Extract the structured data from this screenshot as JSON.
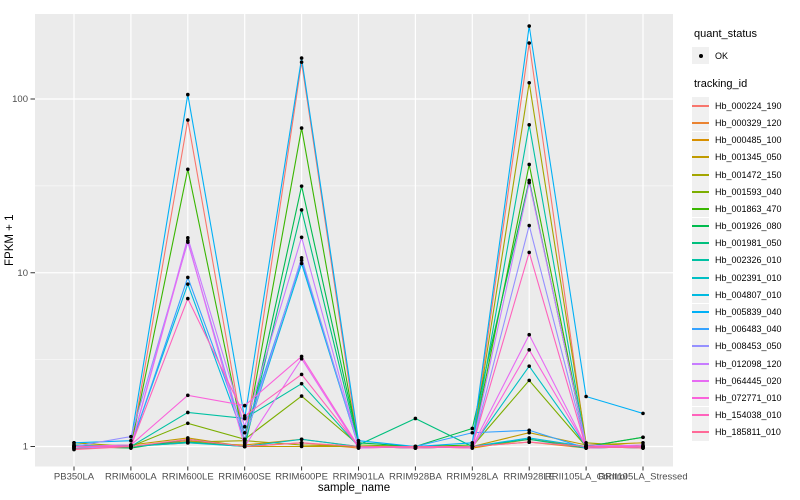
{
  "figure": {
    "background": "#FFFFFF",
    "panel_background": "#EBEBEB",
    "grid_color": "#FFFFFF",
    "tick_color": "#333333",
    "tick_label_color": "#4D4D4D",
    "axis_title_color": "#000000",
    "point_color": "#000000"
  },
  "legend": {
    "quant_status": {
      "title": "quant_status",
      "items": [
        {
          "label": "OK",
          "marker": "point-icon",
          "color": "#000000"
        }
      ]
    },
    "tracking_id": {
      "title": "tracking_id"
    }
  },
  "chart_data": {
    "type": "line",
    "title": "",
    "xlabel": "sample_name",
    "ylabel": "FPKM + 1",
    "y_scale": "log10",
    "y_ticks": [
      1,
      10,
      100
    ],
    "y_minor_ticks_log10": [
      0.5,
      1.5
    ],
    "ylim_log10": [
      -0.115,
      2.49
    ],
    "grid": true,
    "legend_position": "right",
    "point_marker": "black dot (quant_status OK) at every observation",
    "categories": [
      "PB350LA",
      "RRIM600LA",
      "RRIM600LE",
      "RRIM600SE",
      "RRIM600PE",
      "RRIM901LA",
      "RRIM928BA",
      "RRIM928LA",
      "RRIM928LE",
      "RRII105LA_Control",
      "RRII105LA_Stressed"
    ],
    "series": [
      {
        "name": "Hb_000224_190",
        "color": "#F8766D",
        "values": [
          1.0,
          0.98,
          75.7,
          1.05,
          163,
          1.0,
          0.98,
          1.0,
          210,
          1.0,
          0.98
        ]
      },
      {
        "name": "Hb_000329_120",
        "color": "#EA8331",
        "values": [
          1.02,
          1.0,
          1.08,
          1.0,
          1.05,
          0.98,
          1.0,
          1.0,
          1.06,
          0.98,
          1.0
        ]
      },
      {
        "name": "Hb_000485_100",
        "color": "#D89000",
        "values": [
          0.98,
          1.0,
          1.05,
          1.02,
          1.1,
          1.0,
          1.0,
          0.98,
          1.1,
          1.0,
          1.0
        ]
      },
      {
        "name": "Hb_001345_050",
        "color": "#C09B00",
        "values": [
          1.0,
          1.02,
          1.12,
          1.0,
          1.0,
          1.0,
          0.98,
          1.0,
          1.2,
          1.02,
          1.05
        ]
      },
      {
        "name": "Hb_001472_150",
        "color": "#A3A500",
        "values": [
          1.05,
          1.0,
          1.06,
          1.08,
          1.02,
          1.0,
          1.0,
          1.0,
          124,
          1.05,
          1.0
        ]
      },
      {
        "name": "Hb_001593_040",
        "color": "#7CAE00",
        "values": [
          1.0,
          1.0,
          1.36,
          1.1,
          1.95,
          1.02,
          1.0,
          1.0,
          2.4,
          1.0,
          1.13
        ]
      },
      {
        "name": "Hb_001863_470",
        "color": "#39B600",
        "values": [
          0.97,
          1.0,
          39.4,
          1.05,
          68,
          1.0,
          1.0,
          1.02,
          42,
          1.0,
          1.0
        ]
      },
      {
        "name": "Hb_001926_080",
        "color": "#00BB4E",
        "values": [
          1.0,
          0.98,
          1.1,
          1.0,
          31.5,
          1.05,
          1.0,
          1.27,
          34,
          1.0,
          1.13
        ]
      },
      {
        "name": "Hb_001981_050",
        "color": "#00BF7D",
        "values": [
          1.0,
          1.0,
          1.06,
          1.0,
          23,
          1.02,
          1.45,
          1.0,
          1.1,
          0.98,
          1.0
        ]
      },
      {
        "name": "Hb_002326_010",
        "color": "#00C1A3",
        "values": [
          1.02,
          1.0,
          1.57,
          1.45,
          2.3,
          1.0,
          1.0,
          1.0,
          71,
          1.0,
          0.98
        ]
      },
      {
        "name": "Hb_002391_010",
        "color": "#00BFC4",
        "values": [
          1.0,
          1.0,
          1.05,
          1.0,
          1.1,
          1.0,
          0.98,
          1.0,
          2.9,
          1.0,
          1.0
        ]
      },
      {
        "name": "Hb_004807_010",
        "color": "#00BAE0",
        "values": [
          1.0,
          1.02,
          8.6,
          1.1,
          11.3,
          1.0,
          1.0,
          1.0,
          1.12,
          1.0,
          1.0
        ]
      },
      {
        "name": "Hb_005839_040",
        "color": "#00B0F6",
        "values": [
          1.05,
          1.08,
          106,
          1.45,
          172,
          1.08,
          1.0,
          1.05,
          263,
          1.94,
          1.55
        ]
      },
      {
        "name": "Hb_006483_040",
        "color": "#35A2FF",
        "values": [
          1.0,
          1.0,
          9.4,
          1.2,
          11.8,
          1.0,
          1.0,
          1.2,
          1.24,
          0.98,
          1.0
        ]
      },
      {
        "name": "Hb_008453_050",
        "color": "#9590FF",
        "values": [
          1.0,
          1.14,
          15.0,
          1.1,
          12.2,
          1.0,
          1.0,
          1.0,
          18.7,
          1.0,
          1.0
        ]
      },
      {
        "name": "Hb_012098_120",
        "color": "#C77CFF",
        "values": [
          0.98,
          1.0,
          15.9,
          1.3,
          16.0,
          1.0,
          1.0,
          1.0,
          33,
          1.02,
          1.0
        ]
      },
      {
        "name": "Hb_064445_020",
        "color": "#E76BF3",
        "values": [
          1.0,
          1.0,
          15.3,
          1.0,
          3.2,
          0.98,
          1.0,
          1.0,
          4.4,
          1.0,
          1.02
        ]
      },
      {
        "name": "Hb_072771_010",
        "color": "#FA62DB",
        "values": [
          1.0,
          1.02,
          1.97,
          1.72,
          3.3,
          1.0,
          1.0,
          0.98,
          3.6,
          1.0,
          1.0
        ]
      },
      {
        "name": "Hb_154038_010",
        "color": "#FF62BC",
        "values": [
          1.0,
          1.0,
          7.1,
          1.5,
          2.6,
          1.0,
          0.98,
          1.0,
          13.1,
          0.98,
          1.0
        ]
      },
      {
        "name": "Hb_185811_010",
        "color": "#FF6A98",
        "values": [
          0.96,
          1.0,
          1.1,
          1.0,
          1.05,
          1.0,
          1.0,
          1.0,
          1.06,
          1.0,
          0.98
        ]
      }
    ]
  }
}
